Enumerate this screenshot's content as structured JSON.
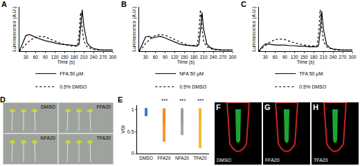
{
  "chart_data": [
    {
      "panel": "A",
      "type": "line",
      "x_label": "Time (s)",
      "y_label": "Luminescence (A.U.)",
      "x": [
        10,
        20,
        30,
        40,
        50,
        60,
        75,
        90,
        105,
        120,
        135,
        150,
        165,
        180,
        190,
        195,
        200,
        205,
        210,
        220,
        230,
        240,
        255,
        270,
        285,
        300
      ],
      "series": [
        {
          "name": "FFA 50 µM",
          "color": "#000000",
          "line_style": "solid",
          "values": [
            0,
            0.15,
            0.28,
            0.3,
            0.28,
            0.25,
            0.22,
            0.19,
            0.17,
            0.15,
            0.13,
            0.12,
            0.11,
            0.1,
            0.1,
            0.12,
            0.4,
            0.75,
            0.45,
            0.15,
            0.08,
            0.05,
            0.03,
            0.02,
            0.02,
            0.02
          ]
        },
        {
          "name": "0.5% DMSO",
          "color": "#000000",
          "line_style": "dotted",
          "values": [
            0,
            0.06,
            0.13,
            0.18,
            0.22,
            0.25,
            0.27,
            0.26,
            0.22,
            0.18,
            0.15,
            0.12,
            0.1,
            0.09,
            0.09,
            0.3,
            0.7,
            0.4,
            0.18,
            0.08,
            0.05,
            0.03,
            0.02,
            0.02,
            0.02,
            0.02
          ]
        }
      ],
      "xlim": [
        10,
        300
      ],
      "xticks": [
        30,
        60,
        90,
        120,
        150,
        180,
        210,
        240,
        270,
        300
      ],
      "ylim": [
        0,
        0.8
      ],
      "tick_labels": "x",
      "legend": "bottom"
    },
    {
      "panel": "B",
      "type": "line",
      "x_label": "Time (s)",
      "y_label": "Luminescence (A.U.)",
      "x": [
        10,
        20,
        30,
        40,
        50,
        60,
        75,
        90,
        105,
        120,
        135,
        150,
        165,
        180,
        190,
        195,
        200,
        205,
        210,
        220,
        230,
        240,
        255,
        270,
        285,
        300
      ],
      "series": [
        {
          "name": "NFA 50 µM",
          "color": "#000000",
          "line_style": "solid",
          "values": [
            0,
            0.14,
            0.26,
            0.27,
            0.24,
            0.25,
            0.27,
            0.24,
            0.2,
            0.16,
            0.13,
            0.11,
            0.1,
            0.09,
            0.09,
            0.12,
            0.35,
            0.7,
            0.4,
            0.13,
            0.07,
            0.04,
            0.03,
            0.02,
            0.02,
            0.02
          ]
        },
        {
          "name": "0.5% DMSO",
          "color": "#000000",
          "line_style": "dotted",
          "values": [
            0,
            0.06,
            0.14,
            0.2,
            0.25,
            0.28,
            0.3,
            0.29,
            0.25,
            0.2,
            0.16,
            0.13,
            0.11,
            0.1,
            0.1,
            0.32,
            0.75,
            0.42,
            0.18,
            0.08,
            0.05,
            0.03,
            0.02,
            0.02,
            0.02,
            0.02
          ]
        }
      ],
      "xlim": [
        10,
        300
      ],
      "xticks": [
        30,
        60,
        90,
        120,
        150,
        180,
        210,
        240,
        270,
        300
      ],
      "ylim": [
        0,
        0.8
      ],
      "tick_labels": "x",
      "legend": "bottom"
    },
    {
      "panel": "C",
      "type": "line",
      "x_label": "Time (s)",
      "y_label": "Luminescence (A.U.)",
      "x": [
        10,
        20,
        30,
        40,
        50,
        60,
        75,
        90,
        105,
        120,
        135,
        150,
        165,
        180,
        190,
        195,
        200,
        205,
        210,
        220,
        230,
        240,
        255,
        270,
        285,
        300
      ],
      "series": [
        {
          "name": "TFA 50 µM",
          "color": "#000000",
          "line_style": "solid",
          "values": [
            0,
            0.08,
            0.13,
            0.13,
            0.12,
            0.11,
            0.11,
            0.11,
            0.1,
            0.1,
            0.09,
            0.09,
            0.08,
            0.08,
            0.08,
            0.1,
            0.35,
            0.72,
            0.4,
            0.12,
            0.06,
            0.04,
            0.03,
            0.02,
            0.02,
            0.02
          ]
        },
        {
          "name": "0.5% DMSO",
          "color": "#000000",
          "line_style": "dotted",
          "values": [
            0,
            0.05,
            0.11,
            0.15,
            0.18,
            0.21,
            0.22,
            0.21,
            0.18,
            0.15,
            0.13,
            0.11,
            0.1,
            0.09,
            0.09,
            0.3,
            0.75,
            0.42,
            0.18,
            0.08,
            0.05,
            0.03,
            0.02,
            0.02,
            0.02,
            0.02
          ]
        }
      ],
      "xlim": [
        10,
        300
      ],
      "xticks": [
        30,
        60,
        90,
        120,
        150,
        180,
        210,
        240,
        270,
        300
      ],
      "ylim": [
        0,
        0.8
      ],
      "tick_labels": "x",
      "legend": "bottom"
    },
    {
      "panel": "E",
      "type": "strip",
      "y_label": "VGI",
      "marker": "square",
      "categories": [
        "DMSO",
        "FFA20",
        "NFA20",
        "TFA20"
      ],
      "colors": [
        "#3b78c4",
        "#f08c1e",
        "#9a9a9a",
        "#f5b41e"
      ],
      "values": [
        [
          1,
          1,
          0.99,
          0.98,
          0.97,
          0.96,
          0.95,
          0.94,
          0.93,
          0.92,
          0.91,
          0.9,
          0.89,
          0.88
        ],
        [
          1,
          0.98,
          0.95,
          0.92,
          0.9,
          0.87,
          0.85,
          0.82,
          0.8,
          0.77,
          0.75,
          0.72,
          0.7,
          0.67,
          0.65,
          0.6,
          0.55,
          0.5,
          0.45,
          0.4,
          0.35,
          0.3
        ],
        [
          1,
          0.97,
          0.95,
          0.93,
          0.9,
          0.88,
          0.85,
          0.83,
          0.8,
          0.78,
          0.75,
          0.72,
          0.7,
          0.65,
          0.6,
          0.55,
          0.5,
          0.45
        ],
        [
          1,
          0.97,
          0.95,
          0.92,
          0.9,
          0.87,
          0.85,
          0.82,
          0.8,
          0.75,
          0.7,
          0.65,
          0.6,
          0.55,
          0.5,
          0.45,
          0.4,
          0.35,
          0.3,
          0.25,
          0.2,
          0.15
        ]
      ],
      "annotations": [
        {
          "category": "FFA20",
          "text": "***"
        },
        {
          "category": "NFA20",
          "text": "***"
        },
        {
          "category": "TFA20",
          "text": "***"
        }
      ],
      "ylim": [
        0,
        1.1
      ],
      "yticks": [
        0,
        0.5,
        1
      ]
    }
  ],
  "images": [
    {
      "panel": "D",
      "labels": [
        "DMSO",
        "FFA20",
        "NFA20",
        "TFA20"
      ]
    },
    {
      "panel": "F",
      "labels": [
        "DMSO"
      ]
    },
    {
      "panel": "G",
      "labels": [
        "FFA20"
      ]
    },
    {
      "panel": "H",
      "labels": [
        "TFA20"
      ]
    }
  ]
}
